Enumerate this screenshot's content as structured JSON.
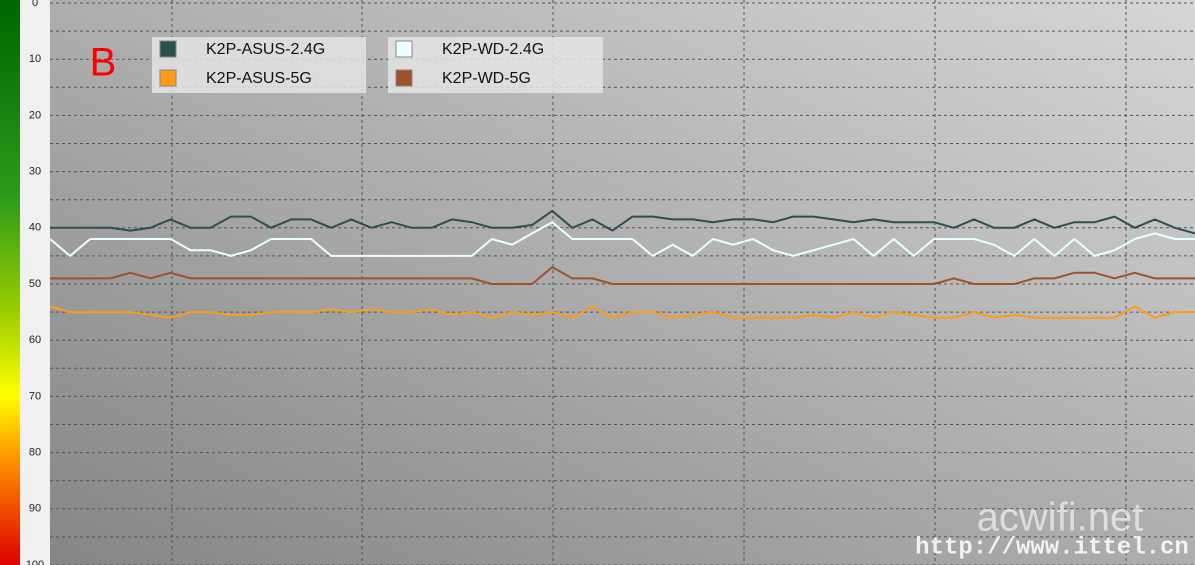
{
  "chart_data": {
    "type": "line",
    "annotations": [
      "B",
      "acwifi.net",
      "http://www.ittel.cn"
    ],
    "ylim": [
      0,
      100
    ],
    "yticks": [
      0,
      10,
      20,
      30,
      40,
      50,
      60,
      70,
      80,
      90,
      100
    ],
    "yminor": [
      5,
      15,
      25,
      35,
      45,
      55,
      65,
      75,
      85,
      95
    ],
    "y_inverted": true,
    "grid": true,
    "series": [
      {
        "name": "K2P-ASUS-2.4G",
        "color": "#2f4f4f",
        "values": [
          40,
          40,
          40,
          40,
          40.5,
          40,
          38.5,
          40,
          40,
          38,
          38,
          40,
          38.5,
          38.5,
          40,
          38.5,
          40,
          39,
          40,
          40,
          38.5,
          39,
          40,
          40,
          39.5,
          37,
          40,
          38.5,
          40.5,
          38,
          38,
          38.5,
          38.5,
          39,
          38.5,
          38.5,
          39,
          38,
          38,
          38.5,
          39,
          38.5,
          39,
          39,
          39,
          40,
          38.5,
          40,
          40,
          38.5,
          40,
          39,
          39,
          38,
          40,
          38.5,
          40,
          41
        ]
      },
      {
        "name": "K2P-ASUS-5G",
        "color": "#ff9a1a",
        "values": [
          54,
          55,
          55,
          55,
          55,
          55.5,
          56,
          55,
          55,
          55.5,
          55.5,
          55,
          55,
          55,
          54.5,
          55,
          54.5,
          55,
          55,
          54.5,
          55.5,
          55,
          56,
          55,
          55.5,
          55,
          56,
          54,
          56,
          55,
          55,
          56,
          55.5,
          55,
          56,
          56,
          56,
          56,
          55.5,
          56,
          55,
          56,
          55,
          55.5,
          56,
          56,
          55,
          56,
          55.5,
          56,
          56,
          56,
          56,
          56,
          54,
          56,
          55,
          55
        ]
      },
      {
        "name": "K2P-WD-2.4G",
        "color": "#eaffff",
        "values": [
          42,
          45,
          42,
          42,
          42,
          42,
          42,
          44,
          44,
          45,
          44,
          42,
          42,
          42,
          45,
          45,
          45,
          45,
          45,
          45,
          45,
          45,
          42,
          43,
          41,
          39,
          42,
          42,
          42,
          42,
          45,
          43,
          45,
          42,
          43,
          42,
          44,
          45,
          44,
          43,
          42,
          45,
          42,
          45,
          42,
          42,
          42,
          43,
          45,
          42,
          45,
          42,
          45,
          44,
          42,
          41,
          42,
          42
        ]
      },
      {
        "name": "K2P-WD-5G",
        "color": "#a0522d",
        "values": [
          49,
          49,
          49,
          49,
          48,
          49,
          48,
          49,
          49,
          49,
          49,
          49,
          49,
          49,
          49,
          49,
          49,
          49,
          49,
          49,
          49,
          49,
          50,
          50,
          50,
          47,
          49,
          49,
          50,
          50,
          50,
          50,
          50,
          50,
          50,
          50,
          50,
          50,
          50,
          50,
          50,
          50,
          50,
          50,
          50,
          49,
          50,
          50,
          50,
          49,
          49,
          48,
          48,
          49,
          48,
          49,
          49,
          49
        ]
      }
    ]
  }
}
